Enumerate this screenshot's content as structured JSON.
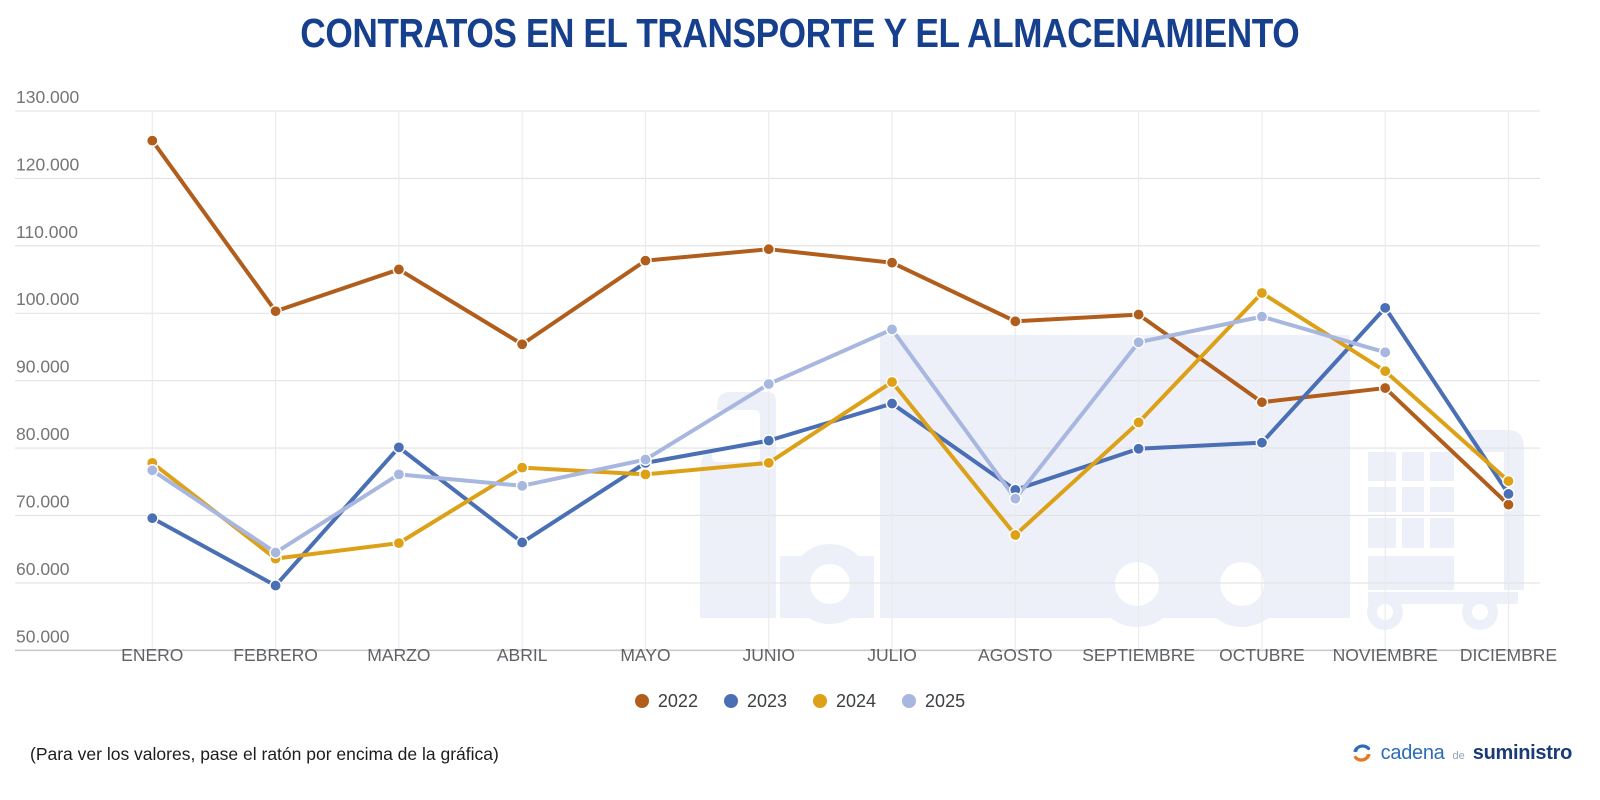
{
  "title": "CONTRATOS EN EL TRANSPORTE Y EL ALMACENAMIENTO",
  "footnote": "(Para ver los valores, pase el ratón por encima de la gráfica)",
  "logo": {
    "cadena": "cadena",
    "de": "de",
    "suministro": "suministro"
  },
  "colors": {
    "title": "#16408E",
    "grid_horizontal": "#E2E2E2",
    "grid_vertical": "#EAEAEA",
    "axis_line": "#C9C9C9",
    "tick_label": "#757575",
    "month_label": "#5F6368",
    "watermark": "#EDF0F8",
    "logo_blue": "#2B6CB8",
    "logo_orange": "#E87722"
  },
  "chart_data": {
    "type": "line",
    "title": "CONTRATOS EN EL TRANSPORTE Y EL ALMACENAMIENTO",
    "xlabel": "",
    "ylabel": "",
    "ylim": [
      50000,
      130000
    ],
    "grid": true,
    "legend_position": "bottom",
    "categories": [
      "ENERO",
      "FEBRERO",
      "MARZO",
      "ABRIL",
      "MAYO",
      "JUNIO",
      "JULIO",
      "AGOSTO",
      "SEPTIEMBRE",
      "OCTUBRE",
      "NOVIEMBRE",
      "DICIEMBRE"
    ],
    "y_ticks": {
      "labels": [
        "130.000",
        "120.000",
        "110.000",
        "100.000",
        "90.000",
        "80.000",
        "70.000",
        "60.000",
        "50.000"
      ],
      "values": [
        130000,
        120000,
        110000,
        100000,
        90000,
        80000,
        70000,
        60000,
        50000
      ]
    },
    "series": [
      {
        "name": "2022",
        "color": "#B15E1D",
        "values": [
          125600,
          100300,
          106500,
          95400,
          107800,
          109500,
          107500,
          98800,
          99800,
          86800,
          88900,
          71600
        ]
      },
      {
        "name": "2023",
        "color": "#4A6FB5",
        "values": [
          69600,
          59600,
          80100,
          66000,
          77800,
          81100,
          86600,
          73800,
          79900,
          80800,
          100800,
          73200
        ]
      },
      {
        "name": "2024",
        "color": "#DDA118",
        "values": [
          77800,
          63600,
          65900,
          77100,
          76100,
          77800,
          89800,
          67100,
          83800,
          103000,
          91400,
          75100
        ]
      },
      {
        "name": "2025",
        "color": "#A8B7DF",
        "values": [
          76700,
          64500,
          76100,
          74400,
          78300,
          89500,
          97600,
          72500,
          95700,
          99500,
          94200,
          null
        ]
      }
    ]
  }
}
